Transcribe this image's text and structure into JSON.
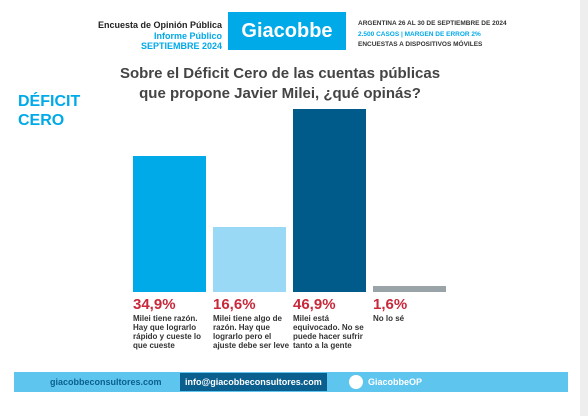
{
  "header": {
    "survey": "Encuesta de Opinión Pública",
    "report": "Informe Público",
    "date": "SEPTIEMBRE 2024",
    "brand": "Giacobbe",
    "location": "ARGENTINA 26 AL 30 DE SEPTIEMBRE DE 2024",
    "sample": "2.500 CASOS | MARGEN DE ERROR 2%",
    "method": "ENCUESTAS A DISPOSITIVOS MÓVILES"
  },
  "side_label": "DÉFICIT CERO",
  "chart_data": {
    "type": "bar",
    "title": "Sobre el Déficit Cero de las cuentas públicas que propone Javier Milei, ¿qué opinás?",
    "categories": [
      "Milei tiene razón. Hay que lograrlo rápido y cueste lo que cueste",
      "Milei tiene algo de razón. Hay que lograrlo pero el ajuste debe ser leve",
      "Milei está equivocado. No se puede hacer sufrir tanto a la gente",
      "No lo sé"
    ],
    "values": [
      34.9,
      16.6,
      46.9,
      1.6
    ],
    "value_labels": [
      "34,9%",
      "16,6%",
      "46,9%",
      "1,6%"
    ],
    "colors": [
      "#00a9e8",
      "#99d9f5",
      "#005b8a",
      "#9aa3a8"
    ]
  },
  "footer": {
    "web": "giacobbeconsultores.com",
    "email": "info@giacobbeconsultores.com",
    "twitter": "GiacobbeOP"
  }
}
